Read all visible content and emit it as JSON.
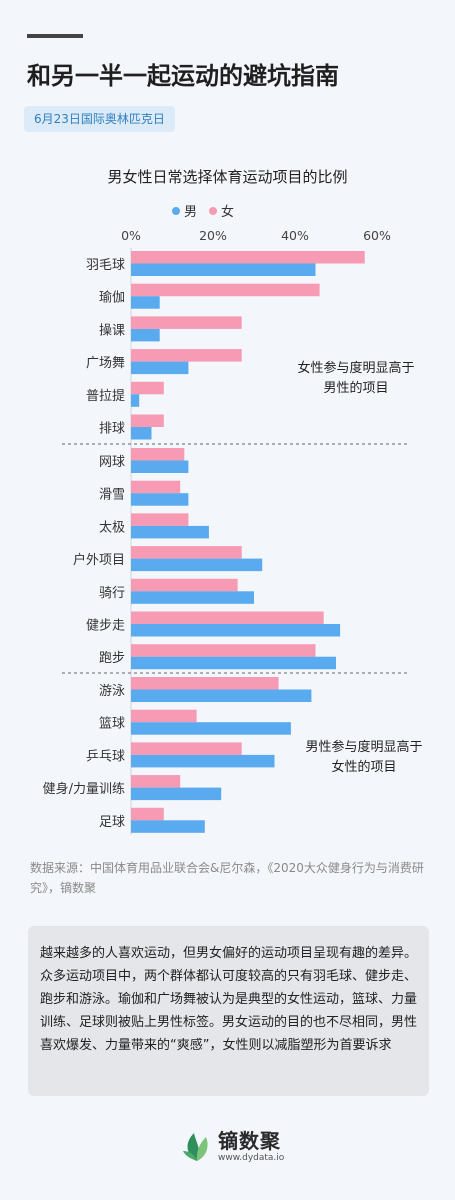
{
  "header": {
    "title": "和另一半一起运动的避坑指南",
    "date_badge": "6月23日国际奥林匹克日"
  },
  "chart_data": {
    "type": "bar",
    "orientation": "horizontal",
    "title": "男女性日常选择体育运动项目的比例",
    "xlim": [
      0,
      60
    ],
    "x_ticks": [
      "0%",
      "20%",
      "40%",
      "60%"
    ],
    "legend_position": "top",
    "categories": [
      "羽毛球",
      "瑜伽",
      "操课",
      "广场舞",
      "普拉提",
      "排球",
      "网球",
      "滑雪",
      "太极",
      "户外项目",
      "骑行",
      "健步走",
      "跑步",
      "游泳",
      "篮球",
      "乒乓球",
      "健身/力量训练",
      "足球"
    ],
    "series": [
      {
        "name": "男",
        "color": "#5aaaf0",
        "values": [
          45,
          7,
          7,
          14,
          2,
          5,
          14,
          14,
          19,
          32,
          30,
          51,
          50,
          44,
          39,
          35,
          22,
          18
        ]
      },
      {
        "name": "女",
        "color": "#f79ab3",
        "values": [
          57,
          46,
          27,
          27,
          8,
          8,
          13,
          12,
          14,
          27,
          26,
          47,
          45,
          36,
          16,
          27,
          12,
          8
        ]
      }
    ],
    "groups": [
      {
        "annotation": [
          "女性参与度明显高于",
          "男性的项目"
        ]
      },
      {
        "annotation": []
      },
      {
        "annotation": [
          "男性参与度明显高于",
          "女性的项目"
        ]
      }
    ]
  },
  "footer": {
    "source": "数据来源：中国体育用品业联合会&尼尔森，《2020大众健身行为与消费研究》，镝数聚",
    "summary": "越来越多的人喜欢运动，但男女偏好的运动项目呈现有趣的差异。众多运动项目中，两个群体都认可度较高的只有羽毛球、健步走、跑步和游泳。瑜伽和广场舞被认为是典型的女性运动，篮球、力量训练、足球则被贴上男性标签。男女运动的目的也不尽相同，男性喜欢爆发、力量带来的“爽感”，女性则以减脂塑形为首要诉求",
    "logo_name": "镝数聚",
    "logo_url": "www.dydata.io",
    "logo_icon": "leaf-icon"
  }
}
